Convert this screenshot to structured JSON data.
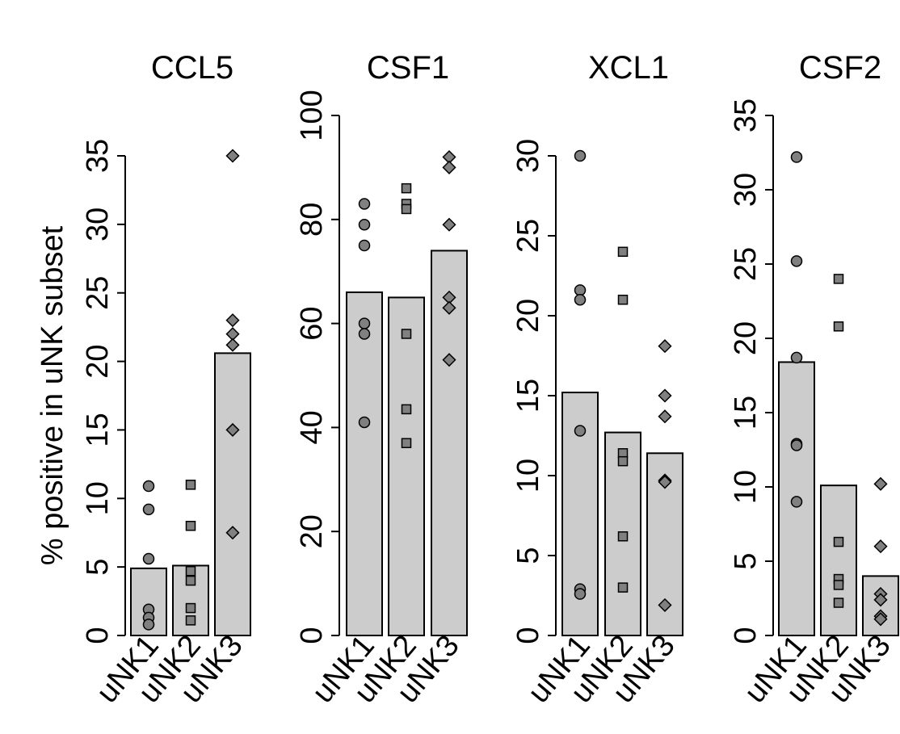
{
  "ylabel": "% positive in uNK subset",
  "chart_data": [
    {
      "type": "bar",
      "title": "CCL5",
      "categories": [
        "uNK1",
        "uNK2",
        "uNK3"
      ],
      "values": [
        4.9,
        5.1,
        20.6
      ],
      "ylim": [
        0,
        35
      ],
      "yticks": [
        "0",
        "5",
        "10",
        "15",
        "20",
        "25",
        "30",
        "35"
      ],
      "points": [
        [
          10.9,
          9.2,
          5.6,
          1.9,
          1.3,
          0.8
        ],
        [
          11.0,
          8.0,
          4.7,
          4.0,
          2.0,
          1.1
        ],
        [
          35.0,
          23.0,
          22.0,
          21.2,
          15.0,
          7.5
        ]
      ]
    },
    {
      "type": "bar",
      "title": "CSF1",
      "categories": [
        "uNK1",
        "uNK2",
        "uNK3"
      ],
      "values": [
        66,
        65,
        74
      ],
      "ylim": [
        0,
        100
      ],
      "yticks": [
        "0",
        "20",
        "40",
        "60",
        "80",
        "100"
      ],
      "points": [
        [
          83,
          79,
          75,
          60,
          58,
          41
        ],
        [
          86,
          83,
          82,
          58,
          43.5,
          37
        ],
        [
          92,
          90,
          79,
          65,
          63,
          53
        ]
      ]
    },
    {
      "type": "bar",
      "title": "XCL1",
      "categories": [
        "uNK1",
        "uNK2",
        "uNK3"
      ],
      "values": [
        15.2,
        12.7,
        11.4
      ],
      "ylim": [
        0,
        30
      ],
      "yticks": [
        "0",
        "5",
        "10",
        "15",
        "20",
        "25",
        "30"
      ],
      "points": [
        [
          30.0,
          21.6,
          21.0,
          12.8,
          2.9,
          2.6
        ],
        [
          24.0,
          21.0,
          11.4,
          10.9,
          6.2,
          3.0
        ],
        [
          18.1,
          15.0,
          13.7,
          9.7,
          9.6,
          1.9
        ]
      ]
    },
    {
      "type": "bar",
      "title": "CSF2",
      "categories": [
        "uNK1",
        "uNK2",
        "uNK3"
      ],
      "values": [
        18.4,
        10.1,
        4.0
      ],
      "ylim": [
        0,
        35
      ],
      "yticks": [
        "0",
        "5",
        "10",
        "15",
        "20",
        "25",
        "30",
        "35"
      ],
      "points": [
        [
          32.2,
          25.2,
          18.7,
          12.9,
          12.8,
          9.0
        ],
        [
          24.0,
          20.8,
          6.3,
          3.8,
          3.4,
          2.2
        ],
        [
          10.2,
          6.0,
          2.8,
          2.4,
          1.3,
          1.1
        ]
      ]
    }
  ]
}
